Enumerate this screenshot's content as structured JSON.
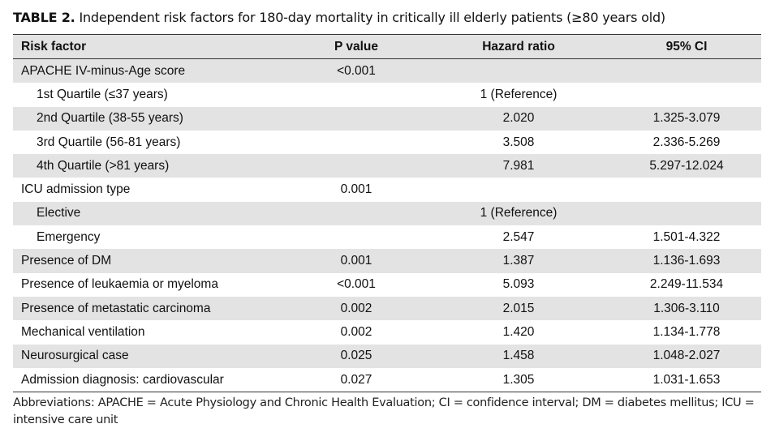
{
  "caption": {
    "tag": "TABLE 2.",
    "text": "Independent risk factors for 180-day mortality in critically ill elderly patients (≥80 years old)"
  },
  "table": {
    "headers": [
      "Risk factor",
      "P value",
      "Hazard ratio",
      "95% CI"
    ],
    "rows": [
      {
        "factor": "APACHE IV-minus-Age score",
        "p": "<0.001",
        "hr": "",
        "ci": "",
        "indent": false
      },
      {
        "factor": "1st Quartile (≤37 years)",
        "p": "",
        "hr": "1 (Reference)",
        "ci": "",
        "indent": true
      },
      {
        "factor": "2nd Quartile (38-55 years)",
        "p": "",
        "hr": "2.020",
        "ci": "1.325-3.079",
        "indent": true
      },
      {
        "factor": "3rd Quartile (56-81 years)",
        "p": "",
        "hr": "3.508",
        "ci": "2.336-5.269",
        "indent": true
      },
      {
        "factor": "4th Quartile (>81 years)",
        "p": "",
        "hr": "7.981",
        "ci": "5.297-12.024",
        "indent": true
      },
      {
        "factor": "ICU admission type",
        "p": "0.001",
        "hr": "",
        "ci": "",
        "indent": false
      },
      {
        "factor": "Elective",
        "p": "",
        "hr": "1 (Reference)",
        "ci": "",
        "indent": true
      },
      {
        "factor": "Emergency",
        "p": "",
        "hr": "2.547",
        "ci": "1.501-4.322",
        "indent": true
      },
      {
        "factor": "Presence of DM",
        "p": "0.001",
        "hr": "1.387",
        "ci": "1.136-1.693",
        "indent": false
      },
      {
        "factor": "Presence of leukaemia or myeloma",
        "p": "<0.001",
        "hr": "5.093",
        "ci": "2.249-11.534",
        "indent": false
      },
      {
        "factor": "Presence of metastatic carcinoma",
        "p": "0.002",
        "hr": "2.015",
        "ci": "1.306-3.110",
        "indent": false
      },
      {
        "factor": "Mechanical ventilation",
        "p": "0.002",
        "hr": "1.420",
        "ci": "1.134-1.778",
        "indent": false
      },
      {
        "factor": "Neurosurgical case",
        "p": "0.025",
        "hr": "1.458",
        "ci": "1.048-2.027",
        "indent": false
      },
      {
        "factor": "Admission diagnosis: cardiovascular",
        "p": "0.027",
        "hr": "1.305",
        "ci": "1.031-1.653",
        "indent": false
      }
    ]
  },
  "footnote": "Abbreviations: APACHE = Acute Physiology and Chronic Health Evaluation; CI = confidence interval; DM = diabetes mellitus; ICU = intensive care unit",
  "colors": {
    "shade": "#e3e3e3",
    "rule": "#333333"
  }
}
